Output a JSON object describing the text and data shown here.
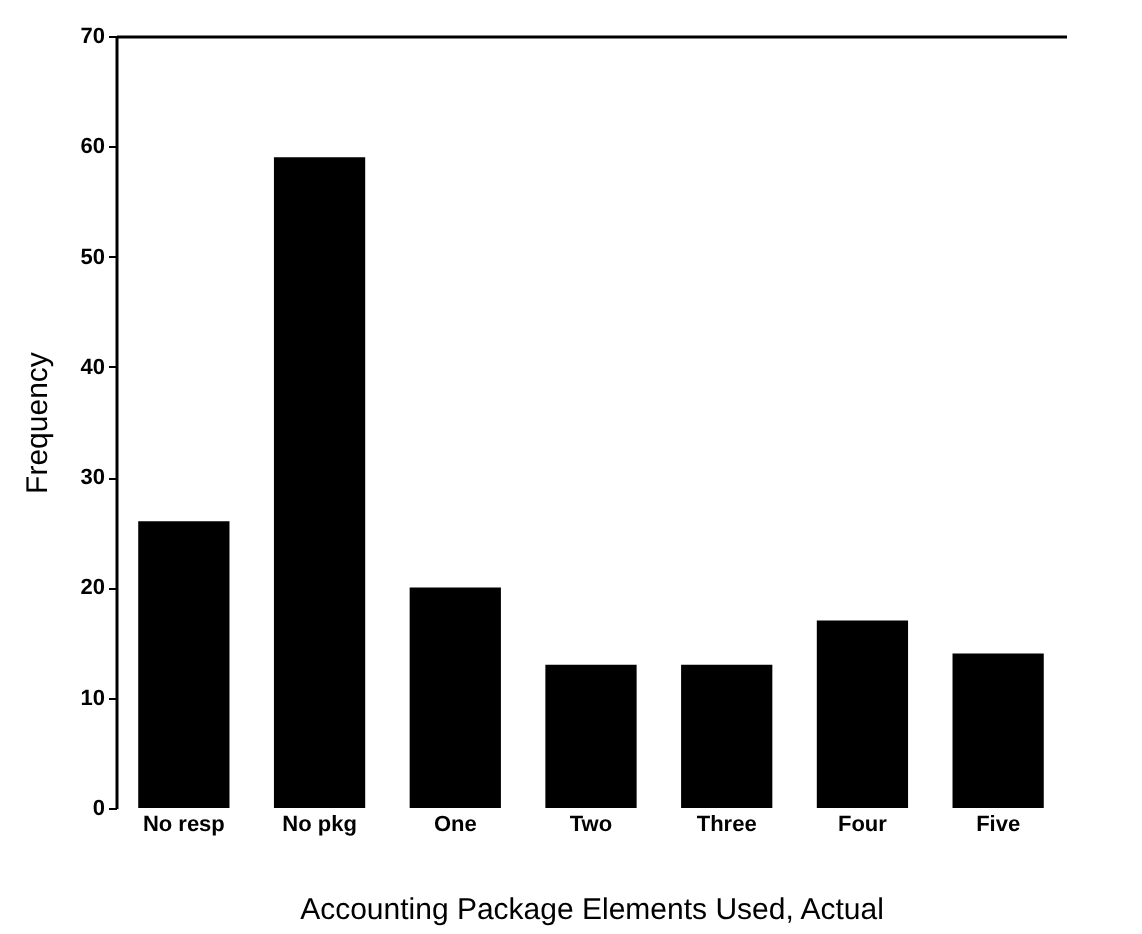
{
  "chart_data": {
    "type": "bar",
    "xlabel": "Accounting Package Elements Used, Actual",
    "ylabel": "Frequency",
    "categories": [
      "No resp",
      "No pkg",
      "One",
      "Two",
      "Three",
      "Four",
      "Five"
    ],
    "values": [
      26,
      59,
      20,
      13,
      13,
      17,
      14
    ],
    "color": "#000000",
    "ylim": [
      0,
      70
    ],
    "yticks": [
      0,
      10,
      20,
      30,
      40,
      50,
      60,
      70
    ],
    "grid": false
  }
}
